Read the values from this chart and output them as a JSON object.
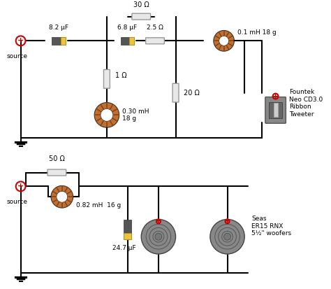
{
  "bg_color": "#ffffff",
  "line_color": "#000000",
  "line_width": 1.5,
  "circuit1": {
    "title": "",
    "source_label": "source",
    "components": [
      {
        "type": "capacitor",
        "label": "8.2 μF",
        "color_body": "#555555",
        "color_end": "#f0c040"
      },
      {
        "type": "resistor_top",
        "label": "30 Ω"
      },
      {
        "type": "capacitor",
        "label": "6.8 μF",
        "color_body": "#555555",
        "color_end": "#f0c040"
      },
      {
        "type": "resistor",
        "label": "2.5 Ω"
      },
      {
        "type": "inductor",
        "label": "0.1 mH 18 g",
        "color": "#c07030"
      },
      {
        "type": "resistor_vert",
        "label": "1 Ω"
      },
      {
        "type": "inductor_vert",
        "label": "0.30 mH\n18 g",
        "color": "#c07030"
      },
      {
        "type": "resistor_vert2",
        "label": "20 Ω"
      },
      {
        "type": "speaker",
        "label": "Fountek\nNeo CD3.0\nRibbon\nTweeter"
      }
    ]
  },
  "circuit2": {
    "source_label": "source",
    "components": [
      {
        "type": "resistor_top",
        "label": "50 Ω"
      },
      {
        "type": "inductor",
        "label": "0.82 mH  16 g",
        "color": "#c07030"
      },
      {
        "type": "capacitor_vert",
        "label": "24.7 μF",
        "color_body": "#555555",
        "color_end": "#f0c040"
      },
      {
        "type": "woofer1",
        "label": ""
      },
      {
        "type": "woofer2",
        "label": "Seas\nER15 RNX\n5½\" woofers"
      }
    ]
  },
  "ground_color": "#000000",
  "source_symbol_color": "#cc0000",
  "plus_color": "#cc0000"
}
